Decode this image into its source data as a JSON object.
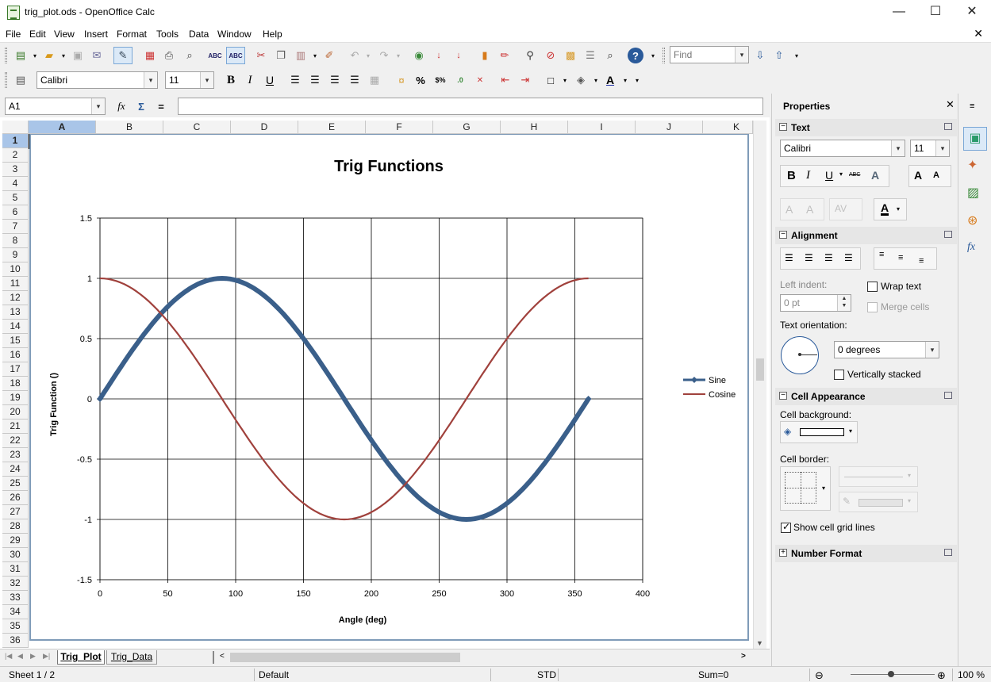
{
  "window": {
    "title": "trig_plot.ods - OpenOffice Calc",
    "minimize": "—",
    "maximize": "☐",
    "close": "✕"
  },
  "menu": [
    "File",
    "Edit",
    "View",
    "Insert",
    "Format",
    "Tools",
    "Data",
    "Window",
    "Help"
  ],
  "toolbar": {
    "find_placeholder": "Find",
    "font_name": "Calibri",
    "font_size": "11"
  },
  "formula": {
    "name_box": "A1",
    "input": ""
  },
  "columns": [
    "A",
    "B",
    "C",
    "D",
    "E",
    "F",
    "G",
    "H",
    "I",
    "J",
    "K"
  ],
  "rows": [
    "1",
    "2",
    "3",
    "4",
    "5",
    "6",
    "7",
    "8",
    "9",
    "10",
    "11",
    "12",
    "13",
    "14",
    "15",
    "16",
    "17",
    "18",
    "19",
    "20",
    "21",
    "22",
    "23",
    "24",
    "25",
    "26",
    "27",
    "28",
    "29",
    "30",
    "31",
    "32",
    "33",
    "34",
    "35",
    "36"
  ],
  "tabs": [
    "Trig_Plot",
    "Trig_Data"
  ],
  "status": {
    "sheet": "Sheet 1 / 2",
    "style": "Default",
    "mode": "STD",
    "sum": "Sum=0",
    "zoom": "100 %"
  },
  "sidebar": {
    "title": "Properties",
    "text_section": "Text",
    "font_name": "Calibri",
    "font_size": "11",
    "alignment_section": "Alignment",
    "left_indent_label": "Left indent:",
    "left_indent_value": "0 pt",
    "wrap_text": "Wrap text",
    "merge_cells": "Merge cells",
    "text_orientation_label": "Text orientation:",
    "orientation_value": "0 degrees",
    "vertically_stacked": "Vertically stacked",
    "cell_appearance_section": "Cell Appearance",
    "cell_background_label": "Cell background:",
    "cell_border_label": "Cell border:",
    "show_grid_lines": "Show cell grid lines",
    "number_format_section": "Number Format"
  },
  "chart_data": {
    "type": "line",
    "title": "Trig Functions",
    "xlabel": "Angle (deg)",
    "ylabel": "Trig Function ()",
    "xlim": [
      0,
      400
    ],
    "ylim": [
      -1.5,
      1.5
    ],
    "x_ticks": [
      "0",
      "50",
      "100",
      "150",
      "200",
      "250",
      "300",
      "350",
      "400"
    ],
    "y_ticks": [
      "1.5",
      "1",
      "0.5",
      "0",
      "-0.5",
      "-1",
      "-1.5"
    ],
    "grid": true,
    "legend_position": "right",
    "series": [
      {
        "name": "Sine",
        "color": "#3a5f8a",
        "function": "sin",
        "x": [
          0,
          30,
          60,
          90,
          120,
          150,
          180,
          210,
          240,
          270,
          300,
          330,
          360
        ],
        "y": [
          0,
          0.5,
          0.866,
          1,
          0.866,
          0.5,
          0,
          -0.5,
          -0.866,
          -1,
          -0.866,
          -0.5,
          0
        ]
      },
      {
        "name": "Cosine",
        "color": "#a0413c",
        "function": "cos",
        "x": [
          0,
          30,
          60,
          90,
          120,
          150,
          180,
          210,
          240,
          270,
          300,
          330,
          360
        ],
        "y": [
          1,
          0.866,
          0.5,
          0,
          -0.5,
          -0.866,
          -1,
          -0.866,
          -0.5,
          0,
          0.5,
          0.866,
          1
        ]
      }
    ]
  }
}
